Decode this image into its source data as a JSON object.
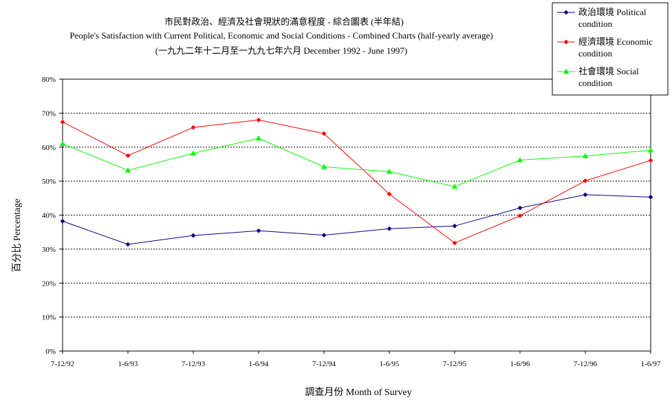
{
  "chart_data": {
    "type": "line",
    "title": "市民對政治、經濟及社會現狀的滿意程度 - 綜合圖表 (半年結)",
    "subtitle": "People's Satisfaction with Current Political, Economic and Social Conditions - Combined Charts (half-yearly average)",
    "subtitle2": "(一九九二年十二月至一九九七年六月 December 1992 - June 1997)",
    "xlabel": "調查月份 Month of Survey",
    "ylabel": "百分比 Percentage",
    "categories": [
      "7-12/92",
      "1-6/93",
      "7-12/93",
      "1-6/94",
      "7-12/94",
      "1-6/95",
      "7-12/95",
      "1-6/96",
      "7-12/96",
      "1-6/97"
    ],
    "ylim": [
      0,
      80
    ],
    "yticks": [
      "0%",
      "10%",
      "20%",
      "30%",
      "40%",
      "50%",
      "60%",
      "70%",
      "80%"
    ],
    "grid": true,
    "legend_position": "top-right",
    "series": [
      {
        "name": "政治環境 Political condition",
        "name_lines": [
          "政治環境 Political",
          "condition"
        ],
        "marker": "diamond",
        "color": "#000080",
        "values": [
          38.2,
          31.4,
          34.0,
          35.4,
          34.1,
          36.0,
          36.8,
          42.1,
          46.0,
          45.3
        ]
      },
      {
        "name": "經濟環境 Economic condition",
        "name_lines": [
          "經濟環境 Economic",
          "condition"
        ],
        "marker": "diamond",
        "color": "#ff0000",
        "values": [
          67.4,
          57.5,
          65.8,
          68.0,
          64.0,
          46.2,
          31.8,
          39.8,
          50.1,
          56.1
        ]
      },
      {
        "name": "社會環境 Social condition",
        "name_lines": [
          "社會環境 Social",
          "condition"
        ],
        "marker": "triangle",
        "color": "#00ff00",
        "values": [
          61.0,
          53.2,
          58.2,
          62.6,
          54.2,
          52.8,
          48.4,
          56.2,
          57.4,
          59.1
        ]
      }
    ]
  }
}
